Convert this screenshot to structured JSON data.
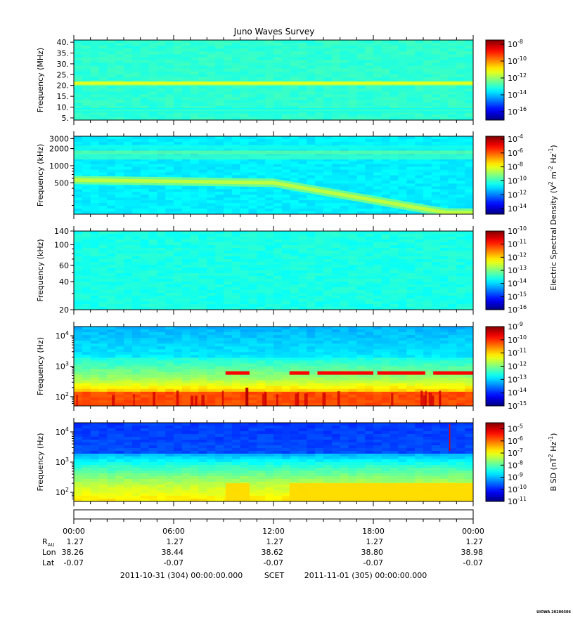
{
  "title": "Juno Waves Survey",
  "footer_stamp": "UIOWA 20200306",
  "chart_data": [
    {
      "type": "heatmap",
      "panel": 1,
      "ylabel": "Frequency (MHz)",
      "scale": "linear",
      "ylim": [
        4,
        41
      ],
      "yticks": [
        5,
        10,
        15,
        20,
        25,
        30,
        35,
        40
      ],
      "ytick_labels": [
        "5.",
        "10.",
        "15.",
        "20.",
        "25.",
        "30.",
        "35.",
        "40."
      ],
      "colorbar_ticks": [
        -16,
        -14,
        -12,
        -10,
        -8
      ],
      "colorbar_range": [
        -17,
        -7.5
      ],
      "features": [
        {
          "name": "band",
          "frequency": 21,
          "level": 0.55
        },
        {
          "name": "band",
          "frequency": 8.5,
          "level": 0.38
        }
      ]
    },
    {
      "type": "heatmap",
      "panel": 2,
      "ylabel": "Frequency (kHz)",
      "scale": "log",
      "ylim": [
        140,
        3300
      ],
      "yticks": [
        500,
        1000,
        2000,
        3000
      ],
      "ytick_labels": [
        "500",
        "1000",
        "2000",
        "3000"
      ],
      "colorbar_ticks": [
        -14,
        -12,
        -10,
        -8,
        -6,
        -4
      ],
      "colorbar_range": [
        -14.8,
        -3.6
      ]
    },
    {
      "type": "heatmap",
      "panel": 3,
      "ylabel": "Frequency (kHz)",
      "scale": "log",
      "ylim": [
        20,
        140
      ],
      "yticks": [
        20,
        40,
        60,
        100,
        140
      ],
      "ytick_labels": [
        "20",
        "40",
        "60",
        "100",
        "140"
      ],
      "colorbar_ticks": [
        -16,
        -15,
        -14,
        -13,
        -12,
        -11,
        -10
      ],
      "colorbar_range": [
        -16,
        -10
      ],
      "colorbar_label": "Electric Spectral Density (V^2 m^-2 Hz^-1)"
    },
    {
      "type": "heatmap",
      "panel": 4,
      "ylabel": "Frequency (Hz)",
      "scale": "log",
      "ylim": [
        50,
        20000
      ],
      "yticks": [
        100,
        1000,
        10000
      ],
      "colorbar_ticks": [
        -15,
        -14,
        -13,
        -12,
        -11,
        -10,
        -9
      ],
      "colorbar_range": [
        -15,
        -9
      ]
    },
    {
      "type": "heatmap",
      "panel": 5,
      "ylabel": "Frequency (Hz)",
      "scale": "log",
      "ylim": [
        50,
        20000
      ],
      "yticks": [
        100,
        1000,
        10000
      ],
      "colorbar_ticks": [
        -11,
        -10,
        -9,
        -8,
        -7,
        -6,
        -5
      ],
      "colorbar_range": [
        -11,
        -4.5
      ],
      "colorbar_label": "B SD (nT^2 Hz^-1)"
    }
  ],
  "time_axis": {
    "ticks": [
      "00:00",
      "06:00",
      "12:00",
      "18:00",
      "00:00"
    ],
    "rows": [
      {
        "label": "R_AU",
        "values": [
          "1.27",
          "1.27",
          "1.27",
          "1.27",
          "1.27"
        ]
      },
      {
        "label": "Lon",
        "values": [
          "38.26",
          "38.44",
          "38.62",
          "38.80",
          "38.98"
        ]
      },
      {
        "label": "Lat",
        "values": [
          "-0.07",
          "-0.07",
          "-0.07",
          "-0.07",
          "-0.07"
        ]
      }
    ],
    "start": "2011-10-31 (304) 00:00:00.000",
    "frame": "SCET",
    "end": "2011-11-01 (305) 00:00:00.000"
  }
}
